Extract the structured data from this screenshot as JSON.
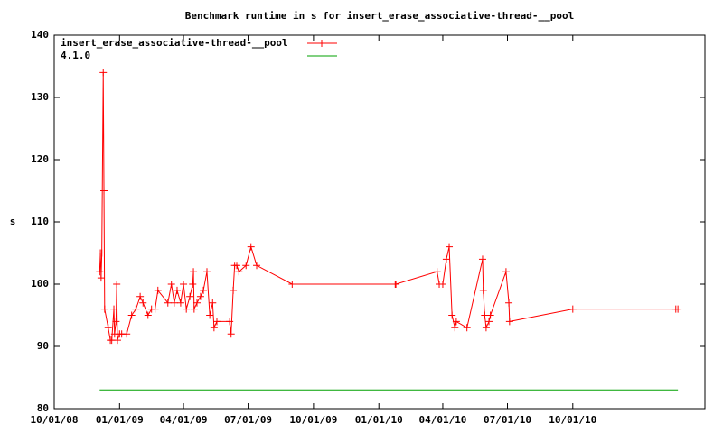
{
  "chart_data": {
    "type": "line",
    "title": "Benchmark runtime in s for insert_erase_associative-thread-__pool",
    "y_label": "s",
    "xlim": [
      "2008-10-01",
      "2011-04-05"
    ],
    "xticks": [
      {
        "value": "2008-10-01",
        "label": "10/01/08"
      },
      {
        "value": "2009-01-01",
        "label": "01/01/09"
      },
      {
        "value": "2009-04-01",
        "label": "04/01/09"
      },
      {
        "value": "2009-07-01",
        "label": "07/01/09"
      },
      {
        "value": "2009-10-01",
        "label": "10/01/09"
      },
      {
        "value": "2010-01-01",
        "label": "01/01/10"
      },
      {
        "value": "2010-04-01",
        "label": "04/01/10"
      },
      {
        "value": "2010-07-01",
        "label": "07/01/10"
      },
      {
        "value": "2010-10-01",
        "label": "10/01/10"
      }
    ],
    "ylim": [
      80,
      140
    ],
    "yticks": [
      80,
      90,
      100,
      110,
      120,
      130,
      140
    ],
    "legend": "top-left",
    "series": [
      {
        "name": "insert_erase_associative-thread-__pool",
        "color": "#ff0000",
        "markers": true,
        "x": [
          "2008-12-04",
          "2008-12-05",
          "2008-12-06",
          "2008-12-07",
          "2008-12-09",
          "2008-12-10",
          "2008-12-11",
          "2008-12-16",
          "2008-12-19",
          "2008-12-21",
          "2008-12-24",
          "2008-12-25",
          "2008-12-27",
          "2008-12-28",
          "2008-12-29",
          "2009-01-01",
          "2009-01-04",
          "2009-01-11",
          "2009-01-18",
          "2009-01-24",
          "2009-01-30",
          "2009-02-03",
          "2009-02-10",
          "2009-02-15",
          "2009-02-20",
          "2009-02-24",
          "2009-03-10",
          "2009-03-15",
          "2009-03-19",
          "2009-03-23",
          "2009-03-28",
          "2009-04-01",
          "2009-04-05",
          "2009-04-10",
          "2009-04-14",
          "2009-04-15",
          "2009-04-16",
          "2009-04-20",
          "2009-04-25",
          "2009-04-29",
          "2009-05-04",
          "2009-05-08",
          "2009-05-12",
          "2009-05-14",
          "2009-05-18",
          "2009-06-05",
          "2009-06-07",
          "2009-06-10",
          "2009-06-12",
          "2009-06-15",
          "2009-06-18",
          "2009-06-28",
          "2009-07-05",
          "2009-07-13",
          "2009-09-01",
          "2010-01-24",
          "2010-01-25",
          "2010-03-24",
          "2010-03-27",
          "2010-04-01",
          "2010-04-06",
          "2010-04-10",
          "2010-04-14",
          "2010-04-18",
          "2010-04-20",
          "2010-05-05",
          "2010-05-27",
          "2010-05-28",
          "2010-05-30",
          "2010-06-01",
          "2010-06-05",
          "2010-06-07",
          "2010-06-29",
          "2010-07-03",
          "2010-07-04",
          "2010-10-01",
          "2011-02-23",
          "2011-02-26"
        ],
        "values": [
          102,
          105,
          101,
          105,
          134,
          115,
          96,
          93,
          91,
          91,
          96,
          92,
          94,
          100,
          91,
          92,
          92,
          92,
          95,
          96,
          98,
          97,
          95,
          96,
          96,
          99,
          97,
          100,
          97,
          99,
          97,
          100,
          96,
          98,
          100,
          102,
          96,
          97,
          98,
          99,
          102,
          95,
          97,
          93,
          94,
          94,
          92,
          99,
          103,
          103,
          102,
          103,
          106,
          103,
          100,
          100,
          100,
          102,
          100,
          100,
          104,
          106,
          95,
          93,
          94,
          93,
          104,
          99,
          95,
          93,
          94,
          95,
          102,
          97,
          94,
          96,
          96,
          96
        ]
      },
      {
        "name": "4.1.0",
        "color": "#00a000",
        "markers": false,
        "x": [
          "2008-12-04",
          "2011-02-26"
        ],
        "values": [
          83,
          83
        ]
      }
    ]
  }
}
